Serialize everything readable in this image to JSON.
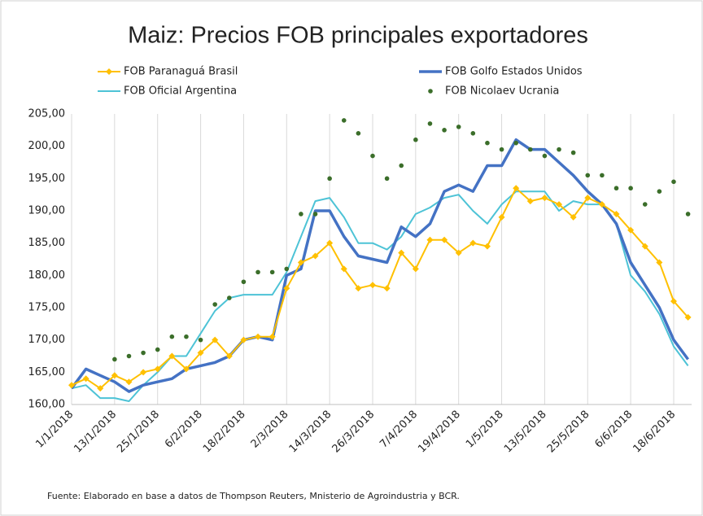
{
  "chart_data": {
    "type": "line",
    "title": "Maiz: Precios FOB principales exportadores",
    "footnote": "Fuente: Elaborado en base a datos de Thompson Reuters, Mnisterio de Agroindustria y BCR.",
    "x": [
      "2018-01-01",
      "2018-01-05",
      "2018-01-09",
      "2018-01-13",
      "2018-01-17",
      "2018-01-21",
      "2018-01-25",
      "2018-01-29",
      "2018-02-02",
      "2018-02-06",
      "2018-02-10",
      "2018-02-14",
      "2018-02-18",
      "2018-02-22",
      "2018-02-26",
      "2018-03-02",
      "2018-03-06",
      "2018-03-10",
      "2018-03-14",
      "2018-03-18",
      "2018-03-22",
      "2018-03-26",
      "2018-03-30",
      "2018-04-03",
      "2018-04-07",
      "2018-04-11",
      "2018-04-15",
      "2018-04-19",
      "2018-04-23",
      "2018-04-27",
      "2018-05-01",
      "2018-05-05",
      "2018-05-09",
      "2018-05-13",
      "2018-05-17",
      "2018-05-21",
      "2018-05-25",
      "2018-05-29",
      "2018-06-02",
      "2018-06-06",
      "2018-06-10",
      "2018-06-14",
      "2018-06-18",
      "2018-06-22"
    ],
    "series": [
      {
        "name": "FOB Paranaguá Brasil",
        "color": "#ffc000",
        "marker": "diamond",
        "line": true,
        "values": [
          163,
          164,
          162.5,
          164.5,
          163.5,
          165,
          165.5,
          167.5,
          165.5,
          168,
          170,
          167.5,
          170,
          170.5,
          170.5,
          178,
          182,
          183,
          185,
          181,
          178,
          178.5,
          178,
          183.5,
          181,
          185.5,
          185.5,
          183.5,
          185,
          184.5,
          189,
          193.5,
          191.5,
          192,
          191,
          189,
          192,
          191,
          189.5,
          187,
          184.5,
          182,
          176,
          173.5
        ]
      },
      {
        "name": "FOB Golfo Estados Unidos",
        "color": "#4472c4",
        "marker": "none",
        "line": true,
        "width": 3.5,
        "values": [
          162.5,
          165.5,
          164.5,
          163.5,
          162,
          163,
          163.5,
          164,
          165.5,
          166,
          166.5,
          167.5,
          170,
          170.5,
          170,
          180,
          181,
          190,
          190,
          186,
          183,
          182.5,
          182,
          187.5,
          186,
          188,
          193,
          194,
          193,
          197,
          197,
          201,
          199.5,
          199.5,
          197.5,
          195.5,
          193,
          191,
          188,
          182,
          178.5,
          175,
          170,
          167
        ]
      },
      {
        "name": "FOB Oficial Argentina",
        "color": "#4dc3d6",
        "marker": "none",
        "line": true,
        "width": 2,
        "values": [
          162.5,
          163,
          161,
          161,
          160.5,
          163,
          165,
          167.5,
          167.5,
          171,
          174.5,
          176.5,
          177,
          177,
          177,
          180.5,
          186,
          191.5,
          192,
          189,
          185,
          185,
          184,
          186,
          189.5,
          190.5,
          192,
          192.5,
          190,
          188,
          191,
          193,
          193,
          193,
          190,
          191.5,
          191,
          191,
          188,
          180,
          177.5,
          174,
          169,
          166
        ]
      },
      {
        "name": "FOB Nicolaev Ucrania",
        "color": "#3b6e2a",
        "marker": "circle",
        "line": false,
        "values": [
          null,
          null,
          null,
          167,
          167.5,
          168,
          168.5,
          170.5,
          170.5,
          170,
          175.5,
          176.5,
          179,
          180.5,
          180.5,
          181,
          189.5,
          189.5,
          195,
          204,
          202,
          198.5,
          195,
          197,
          201,
          203.5,
          202.5,
          203,
          202,
          200.5,
          199.5,
          200.5,
          199.5,
          198.5,
          199.5,
          199,
          195.5,
          195.5,
          193.5,
          193.5,
          191,
          193,
          194.5,
          189.5
        ]
      }
    ],
    "xlim": [
      "2018-01-01",
      "2018-06-23"
    ],
    "xticks": [
      {
        "value": "2018-01-01",
        "label": "1/1/2018"
      },
      {
        "value": "2018-01-13",
        "label": "13/1/2018"
      },
      {
        "value": "2018-01-25",
        "label": "25/1/2018"
      },
      {
        "value": "2018-02-06",
        "label": "6/2/2018"
      },
      {
        "value": "2018-02-18",
        "label": "18/2/2018"
      },
      {
        "value": "2018-03-02",
        "label": "2/3/2018"
      },
      {
        "value": "2018-03-14",
        "label": "14/3/2018"
      },
      {
        "value": "2018-03-26",
        "label": "26/3/2018"
      },
      {
        "value": "2018-04-07",
        "label": "7/4/2018"
      },
      {
        "value": "2018-04-19",
        "label": "19/4/2018"
      },
      {
        "value": "2018-05-01",
        "label": "1/5/2018"
      },
      {
        "value": "2018-05-13",
        "label": "13/5/2018"
      },
      {
        "value": "2018-05-25",
        "label": "25/5/2018"
      },
      {
        "value": "2018-06-06",
        "label": "6/6/2018"
      },
      {
        "value": "2018-06-18",
        "label": "18/6/2018"
      }
    ],
    "ylim": [
      160,
      205
    ],
    "yticks": [
      {
        "value": 160,
        "label": "160,00"
      },
      {
        "value": 165,
        "label": "165,00"
      },
      {
        "value": 170,
        "label": "170,00"
      },
      {
        "value": 175,
        "label": "175,00"
      },
      {
        "value": 180,
        "label": "180,00"
      },
      {
        "value": 185,
        "label": "185,00"
      },
      {
        "value": 190,
        "label": "190,00"
      },
      {
        "value": 195,
        "label": "195,00"
      },
      {
        "value": 200,
        "label": "200,00"
      },
      {
        "value": 205,
        "label": "205,00"
      }
    ],
    "grid": "x",
    "legend": "top"
  }
}
